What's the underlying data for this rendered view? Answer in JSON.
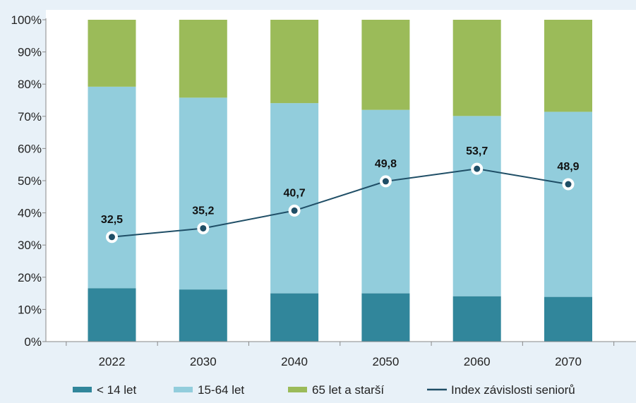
{
  "chart_data": {
    "type": "bar",
    "stacked": true,
    "percent_stacked": true,
    "categories": [
      "2022",
      "2030",
      "2040",
      "2050",
      "2060",
      "2070"
    ],
    "series": [
      {
        "name": "< 14 let",
        "values": [
          16.6,
          16.2,
          15.0,
          15.0,
          14.1,
          13.9
        ],
        "color": "#31869b"
      },
      {
        "name": "15-64 let",
        "values": [
          62.6,
          59.6,
          59.1,
          57.0,
          56.0,
          57.5
        ],
        "color": "#92cddc"
      },
      {
        "name": "65 let a starší",
        "values": [
          20.8,
          24.2,
          25.9,
          28.0,
          29.9,
          28.6
        ],
        "color": "#9bbb59"
      }
    ],
    "line_series": {
      "name": "Index závislosti seniorů",
      "values": [
        32.5,
        35.2,
        40.7,
        49.8,
        53.7,
        48.9
      ],
      "labels": [
        "32,5",
        "35,2",
        "40,7",
        "49,8",
        "53,7",
        "48,9"
      ],
      "color": "#1f4e66"
    },
    "yaxis": {
      "ticks": [
        "0%",
        "10%",
        "20%",
        "30%",
        "40%",
        "50%",
        "60%",
        "70%",
        "80%",
        "90%",
        "100%"
      ],
      "ylim": [
        0,
        100
      ]
    },
    "title": "",
    "xlabel": "",
    "ylabel": "",
    "grid": false,
    "legend_position": "bottom"
  }
}
